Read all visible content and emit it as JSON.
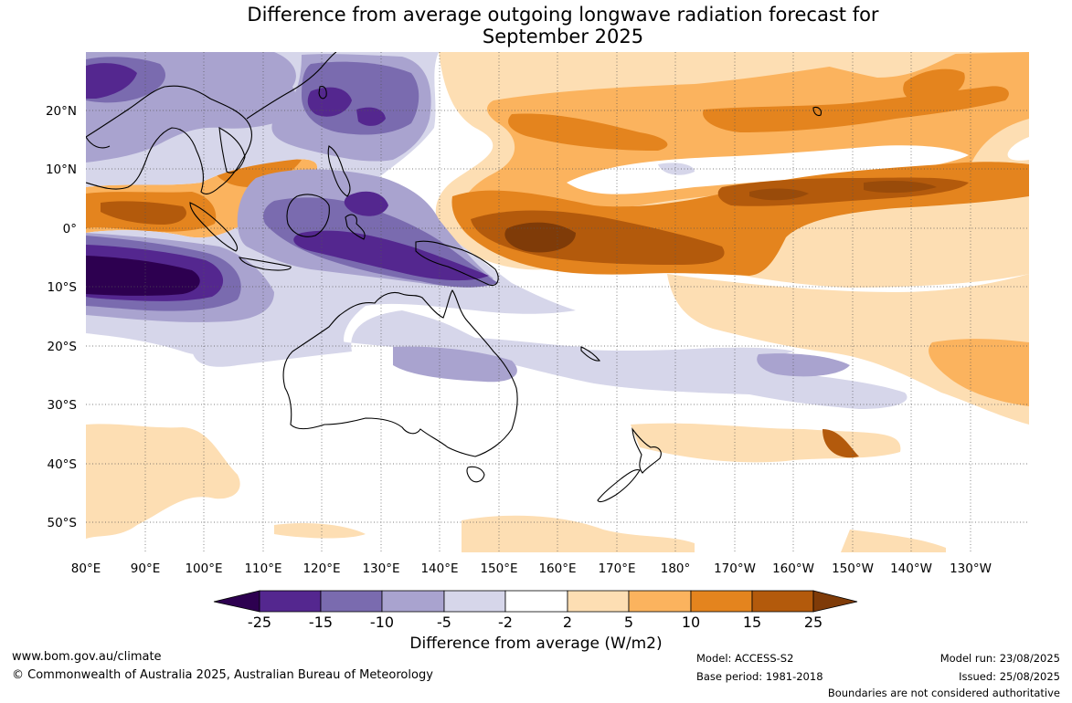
{
  "title": {
    "line1": "Difference from average outgoing longwave radiation forecast for",
    "line2": "September 2025"
  },
  "map": {
    "lon_labels": [
      "80°E",
      "90°E",
      "100°E",
      "110°E",
      "120°E",
      "130°E",
      "140°E",
      "150°E",
      "160°E",
      "170°E",
      "180°",
      "170°W",
      "160°W",
      "150°W",
      "140°W",
      "130°W"
    ],
    "lat_labels": [
      "20°N",
      "10°N",
      "0°",
      "10°S",
      "20°S",
      "30°S",
      "40°S",
      "50°S"
    ],
    "land_outline_color": "#000000",
    "gridline_style": "dotted"
  },
  "colorbar": {
    "colors": [
      "#2d0050",
      "#54278f",
      "#7a6baf",
      "#a9a3cf",
      "#d6d6ea",
      "#ffffff",
      "#fddeb3",
      "#fbb35e",
      "#e4841e",
      "#b35a0c",
      "#7f3b08"
    ],
    "tick_labels": [
      "-25",
      "-15",
      "-10",
      "-5",
      "-2",
      "2",
      "5",
      "10",
      "15",
      "25"
    ],
    "title": "Difference from average (W/m2)"
  },
  "footer": {
    "website": "www.bom.gov.au/climate",
    "copyright": "© Commonwealth of Australia 2025, Australian Bureau of Meteorology",
    "model": "Model: ACCESS-S2",
    "base_period": "Base period: 1981-2018",
    "model_run": "Model run: 23/08/2025",
    "issued": "Issued: 25/08/2025",
    "disclaimer": "Boundaries are not considered authoritative"
  }
}
